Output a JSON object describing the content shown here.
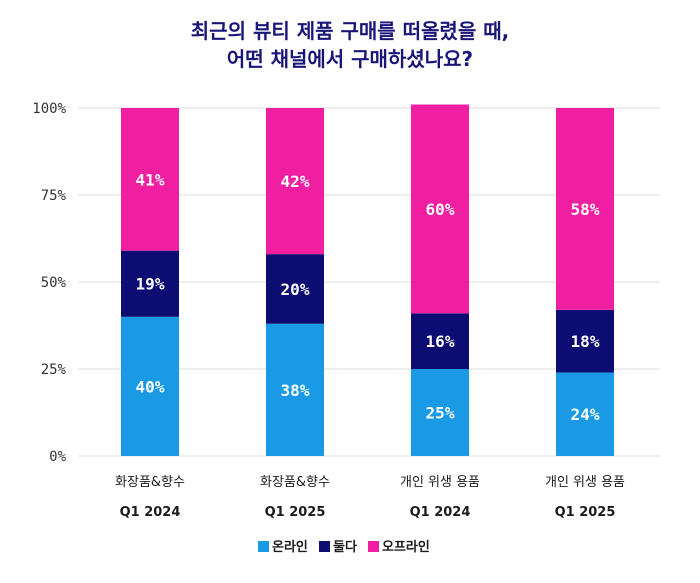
{
  "chart_data": {
    "type": "bar",
    "stacked": true,
    "title_lines": [
      "최근의 뷰티 제품 구매를 떠올렸을 때,",
      "어떤 채널에서 구매하셨나요?"
    ],
    "categories": [
      [
        "화장품&향수",
        "Q1 2024"
      ],
      [
        "화장품&향수",
        "Q1 2025"
      ],
      [
        "개인 위생 용품",
        "Q1 2024"
      ],
      [
        "개인 위생 용품",
        "Q1 2025"
      ]
    ],
    "series": [
      {
        "name": "온라인",
        "color": "#1a9ae5",
        "values": [
          40,
          38,
          25,
          24
        ]
      },
      {
        "name": "둘다",
        "color": "#0d0c72",
        "values": [
          19,
          20,
          16,
          18
        ]
      },
      {
        "name": "오프라인",
        "color": "#f01ea0",
        "values": [
          41,
          42,
          60,
          58
        ]
      }
    ],
    "value_suffix": "%",
    "y_ticks": [
      "0%",
      "25%",
      "50%",
      "75%",
      "100%"
    ],
    "ylim": [
      0,
      100
    ],
    "grid": true,
    "legend_position": "bottom-center",
    "title_color": "#1a1678"
  }
}
